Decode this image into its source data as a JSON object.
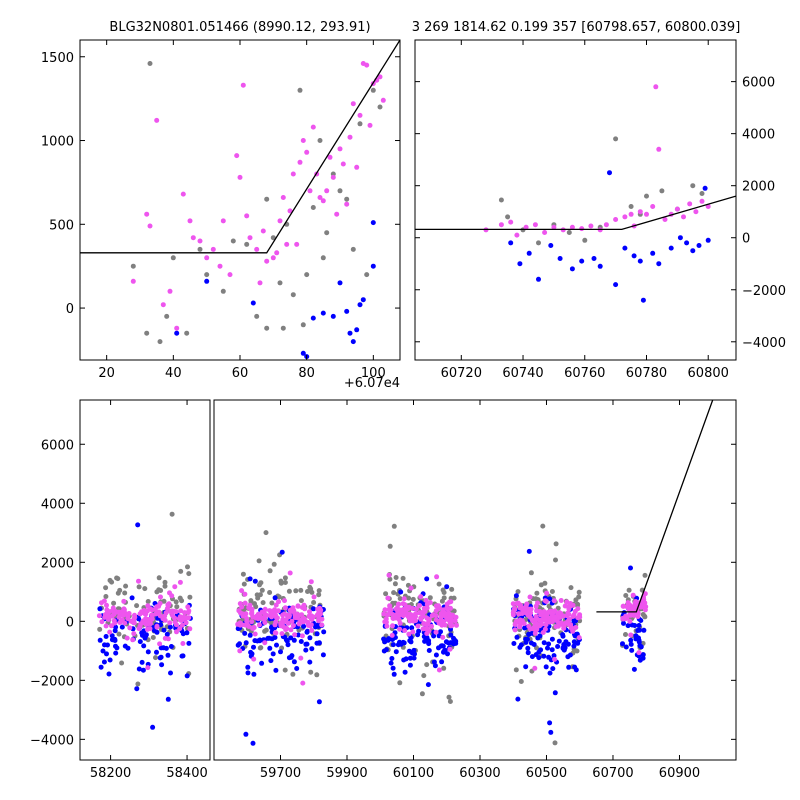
{
  "chart_data": [
    {
      "id": "zoom",
      "type": "scatter",
      "title": "BLG32N0801.051466 (8990.12, 293.91)",
      "offset_label": "+6.07e4",
      "x_offset": 60700,
      "xlim": [
        12,
        108
      ],
      "ylim": [
        -310,
        1600
      ],
      "xticks": [
        20,
        40,
        60,
        80,
        100
      ],
      "yticks": [
        0,
        500,
        1000,
        1500
      ],
      "series": [
        {
          "name": "gray",
          "color": "#808080",
          "points": [
            [
              28,
              250
            ],
            [
              32,
              -150
            ],
            [
              33,
              1460
            ],
            [
              36,
              -200
            ],
            [
              38,
              -50
            ],
            [
              40,
              300
            ],
            [
              44,
              -150
            ],
            [
              48,
              350
            ],
            [
              50,
              200
            ],
            [
              55,
              100
            ],
            [
              58,
              400
            ],
            [
              62,
              380
            ],
            [
              65,
              -50
            ],
            [
              68,
              -120
            ],
            [
              70,
              420
            ],
            [
              72,
              150
            ],
            [
              74,
              500
            ],
            [
              76,
              80
            ],
            [
              78,
              1300
            ],
            [
              80,
              200
            ],
            [
              82,
              600
            ],
            [
              84,
              1000
            ],
            [
              86,
              450
            ],
            [
              88,
              800
            ],
            [
              90,
              700
            ],
            [
              92,
              650
            ],
            [
              94,
              350
            ],
            [
              96,
              1100
            ],
            [
              98,
              200
            ],
            [
              100,
              1300
            ],
            [
              102,
              1200
            ],
            [
              68,
              650
            ],
            [
              73,
              -120
            ],
            [
              79,
              -100
            ],
            [
              85,
              300
            ]
          ]
        },
        {
          "name": "blue",
          "color": "#0000ff",
          "points": [
            [
              41,
              -150
            ],
            [
              50,
              160
            ],
            [
              64,
              30
            ],
            [
              79,
              -270
            ],
            [
              80,
              -290
            ],
            [
              82,
              -60
            ],
            [
              85,
              -30
            ],
            [
              88,
              -50
            ],
            [
              90,
              150
            ],
            [
              92,
              -20
            ],
            [
              93,
              -150
            ],
            [
              94,
              -200
            ],
            [
              95,
              -130
            ],
            [
              96,
              20
            ],
            [
              97,
              50
            ],
            [
              100,
              250
            ],
            [
              100,
              510
            ]
          ]
        },
        {
          "name": "magenta",
          "color": "#ee55ee",
          "points": [
            [
              28,
              160
            ],
            [
              32,
              560
            ],
            [
              33,
              490
            ],
            [
              35,
              1120
            ],
            [
              37,
              20
            ],
            [
              39,
              100
            ],
            [
              41,
              -120
            ],
            [
              43,
              680
            ],
            [
              45,
              520
            ],
            [
              46,
              420
            ],
            [
              48,
              400
            ],
            [
              50,
              300
            ],
            [
              52,
              350
            ],
            [
              54,
              250
            ],
            [
              55,
              520
            ],
            [
              57,
              200
            ],
            [
              59,
              910
            ],
            [
              60,
              780
            ],
            [
              61,
              1330
            ],
            [
              62,
              550
            ],
            [
              63,
              420
            ],
            [
              65,
              350
            ],
            [
              66,
              150
            ],
            [
              67,
              460
            ],
            [
              68,
              280
            ],
            [
              70,
              300
            ],
            [
              71,
              330
            ],
            [
              72,
              520
            ],
            [
              73,
              660
            ],
            [
              74,
              380
            ],
            [
              75,
              580
            ],
            [
              76,
              800
            ],
            [
              77,
              380
            ],
            [
              78,
              870
            ],
            [
              79,
              1000
            ],
            [
              80,
              930
            ],
            [
              81,
              700
            ],
            [
              82,
              1080
            ],
            [
              83,
              800
            ],
            [
              84,
              660
            ],
            [
              85,
              640
            ],
            [
              86,
              700
            ],
            [
              87,
              900
            ],
            [
              88,
              780
            ],
            [
              89,
              560
            ],
            [
              90,
              950
            ],
            [
              91,
              860
            ],
            [
              92,
              620
            ],
            [
              93,
              1020
            ],
            [
              94,
              1220
            ],
            [
              95,
              840
            ],
            [
              96,
              1150
            ],
            [
              97,
              1460
            ],
            [
              98,
              1450
            ],
            [
              99,
              1090
            ],
            [
              100,
              1340
            ],
            [
              101,
              1360
            ],
            [
              102,
              1380
            ],
            [
              103,
              1240
            ]
          ]
        }
      ],
      "lines": [
        [
          [
            12,
            330
          ],
          [
            68,
            330
          ],
          [
            108,
            1600
          ]
        ]
      ]
    },
    {
      "id": "recent",
      "type": "scatter",
      "title": "3 269 1814.62 0.199 357 [60798.657, 60800.039]",
      "xlim": [
        60705,
        60809
      ],
      "ylim": [
        -4700,
        7600
      ],
      "xticks": [
        60720,
        60740,
        60760,
        60780,
        60800
      ],
      "yticks": [
        -4000,
        -2000,
        0,
        2000,
        4000,
        6000
      ],
      "series": [
        {
          "name": "gray",
          "color": "#808080",
          "points": [
            [
              60733,
              1450
            ],
            [
              60735,
              800
            ],
            [
              60740,
              300
            ],
            [
              60745,
              -200
            ],
            [
              60750,
              500
            ],
            [
              60755,
              200
            ],
            [
              60760,
              -100
            ],
            [
              60765,
              400
            ],
            [
              60770,
              3800
            ],
            [
              60775,
              1200
            ],
            [
              60778,
              900
            ],
            [
              60780,
              1600
            ],
            [
              60785,
              1800
            ],
            [
              60790,
              1100
            ],
            [
              60795,
              2000
            ],
            [
              60798,
              1700
            ]
          ]
        },
        {
          "name": "blue",
          "color": "#0000ff",
          "points": [
            [
              60736,
              -200
            ],
            [
              60739,
              -1000
            ],
            [
              60742,
              -600
            ],
            [
              60745,
              -1600
            ],
            [
              60749,
              -300
            ],
            [
              60752,
              -800
            ],
            [
              60756,
              -1200
            ],
            [
              60759,
              -900
            ],
            [
              60763,
              -800
            ],
            [
              60765,
              -1100
            ],
            [
              60768,
              2500
            ],
            [
              60770,
              -1800
            ],
            [
              60773,
              -400
            ],
            [
              60776,
              -700
            ],
            [
              60778,
              -900
            ],
            [
              60779,
              -2400
            ],
            [
              60782,
              -600
            ],
            [
              60784,
              -1000
            ],
            [
              60788,
              -400
            ],
            [
              60791,
              0
            ],
            [
              60793,
              -200
            ],
            [
              60795,
              -500
            ],
            [
              60797,
              -300
            ],
            [
              60799,
              1900
            ],
            [
              60800,
              -100
            ]
          ]
        },
        {
          "name": "magenta",
          "color": "#ee55ee",
          "points": [
            [
              60728,
              300
            ],
            [
              60733,
              500
            ],
            [
              60736,
              600
            ],
            [
              60738,
              100
            ],
            [
              60741,
              400
            ],
            [
              60744,
              500
            ],
            [
              60747,
              200
            ],
            [
              60750,
              400
            ],
            [
              60753,
              300
            ],
            [
              60756,
              400
            ],
            [
              60759,
              350
            ],
            [
              60762,
              450
            ],
            [
              60765,
              300
            ],
            [
              60767,
              500
            ],
            [
              60770,
              700
            ],
            [
              60773,
              800
            ],
            [
              60775,
              900
            ],
            [
              60776,
              450
            ],
            [
              60778,
              1000
            ],
            [
              60780,
              900
            ],
            [
              60782,
              1200
            ],
            [
              60783,
              5800
            ],
            [
              60784,
              3400
            ],
            [
              60786,
              700
            ],
            [
              60788,
              900
            ],
            [
              60790,
              1100
            ],
            [
              60792,
              800
            ],
            [
              60794,
              1300
            ],
            [
              60796,
              1000
            ],
            [
              60798,
              1400
            ],
            [
              60800,
              1200
            ]
          ]
        }
      ],
      "lines": [
        [
          [
            60705,
            320
          ],
          [
            60772,
            320
          ],
          [
            60809,
            1600
          ]
        ]
      ]
    },
    {
      "id": "full",
      "type": "scatter",
      "title": "",
      "ylim": [
        -4700,
        7500
      ],
      "yticks": [
        -4000,
        -2000,
        0,
        2000,
        4000,
        6000
      ],
      "segments": [
        {
          "xlim": [
            58120,
            58460
          ],
          "xticks": [
            58200,
            58400
          ]
        },
        {
          "xlim": [
            59500,
            61070
          ],
          "xticks": [
            59700,
            59900,
            60100,
            60300,
            60500,
            60700,
            60900
          ]
        }
      ],
      "clumps": [
        {
          "seg": 0,
          "x": [
            58170,
            58410
          ],
          "count": 320
        },
        {
          "seg": 1,
          "x": [
            59570,
            59830
          ],
          "count": 360
        },
        {
          "seg": 1,
          "x": [
            60010,
            60230
          ],
          "count": 360
        },
        {
          "seg": 1,
          "x": [
            60400,
            60600
          ],
          "count": 360
        },
        {
          "seg": 1,
          "x": [
            60728,
            60800
          ],
          "count": 110
        }
      ],
      "series": [
        {
          "name": "gray",
          "color": "#808080"
        },
        {
          "name": "blue",
          "color": "#0000ff"
        },
        {
          "name": "magenta",
          "color": "#ee55ee"
        }
      ],
      "lines": [
        [
          [
            60650,
            320
          ],
          [
            60770,
            320
          ],
          [
            61000,
            7500
          ]
        ]
      ]
    }
  ]
}
